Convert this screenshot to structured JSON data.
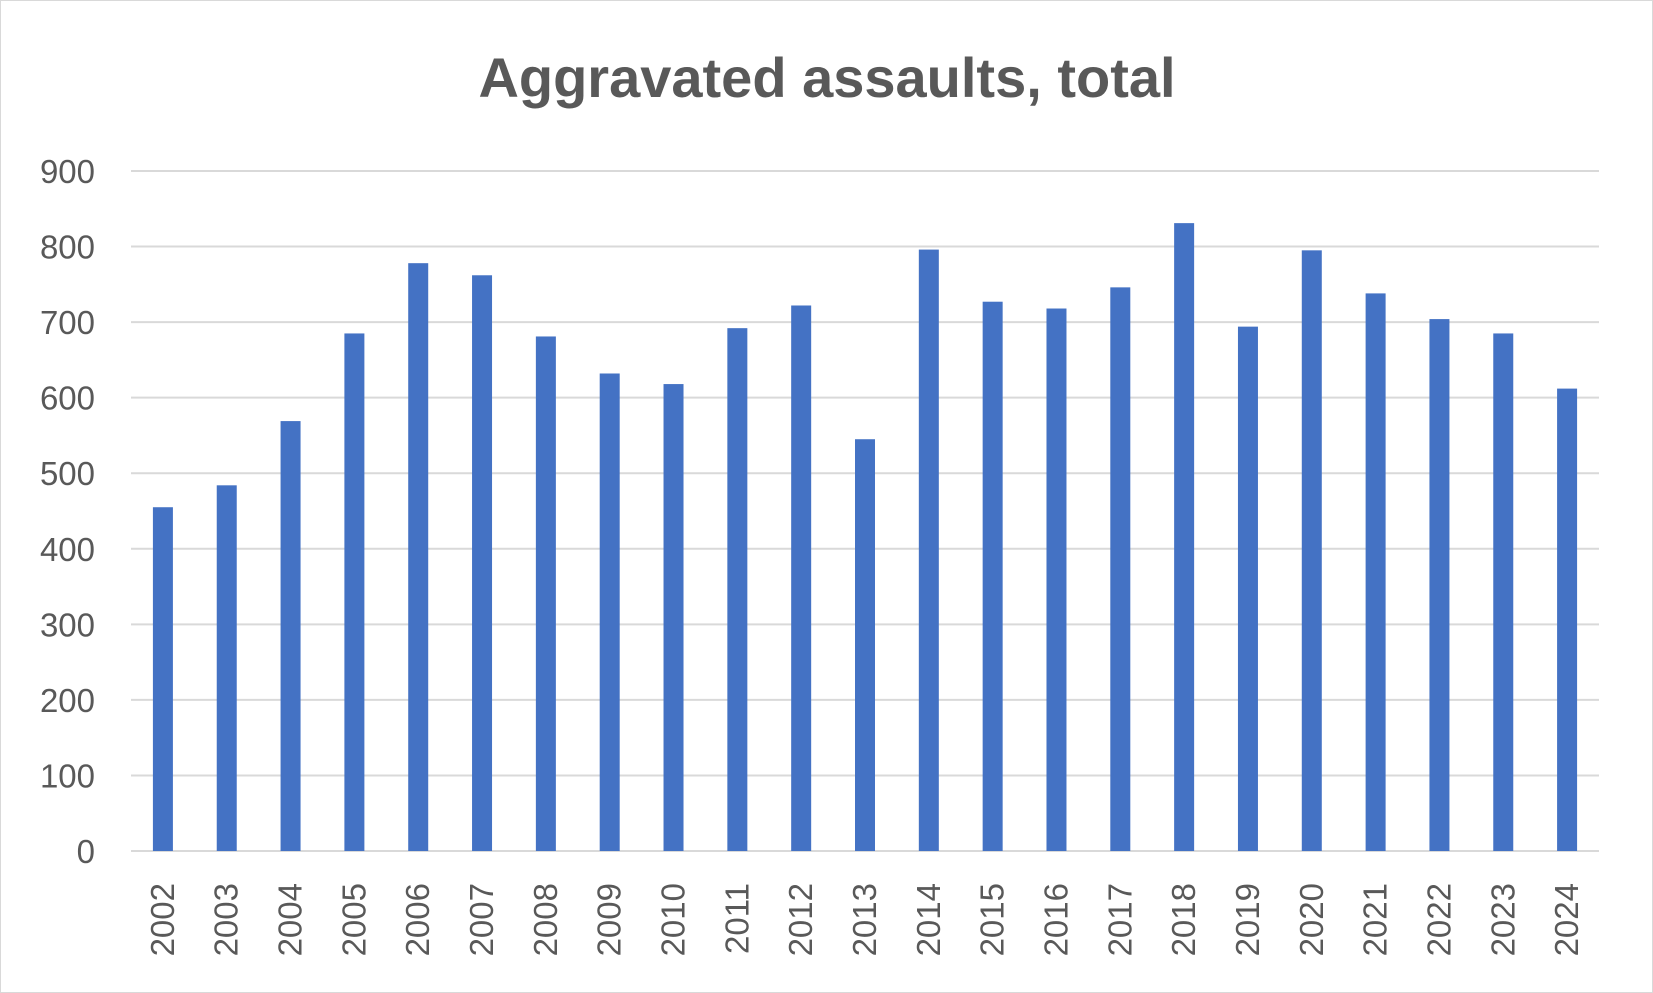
{
  "chart_data": {
    "type": "bar",
    "title": "Aggravated assaults, total",
    "xlabel": "",
    "ylabel": "",
    "ylim": [
      0,
      900
    ],
    "yticks": [
      0,
      100,
      200,
      300,
      400,
      500,
      600,
      700,
      800,
      900
    ],
    "grid": true,
    "legend": "none",
    "bar_color": "#4472c4",
    "categories": [
      "2002",
      "2003",
      "2004",
      "2005",
      "2006",
      "2007",
      "2008",
      "2009",
      "2010",
      "2011",
      "2012",
      "2013",
      "2014",
      "2015",
      "2016",
      "2017",
      "2018",
      "2019",
      "2020",
      "2021",
      "2022",
      "2023",
      "2024"
    ],
    "values": [
      455,
      484,
      569,
      685,
      778,
      762,
      681,
      632,
      618,
      692,
      722,
      545,
      796,
      727,
      718,
      746,
      831,
      694,
      795,
      738,
      704,
      685,
      612
    ]
  }
}
